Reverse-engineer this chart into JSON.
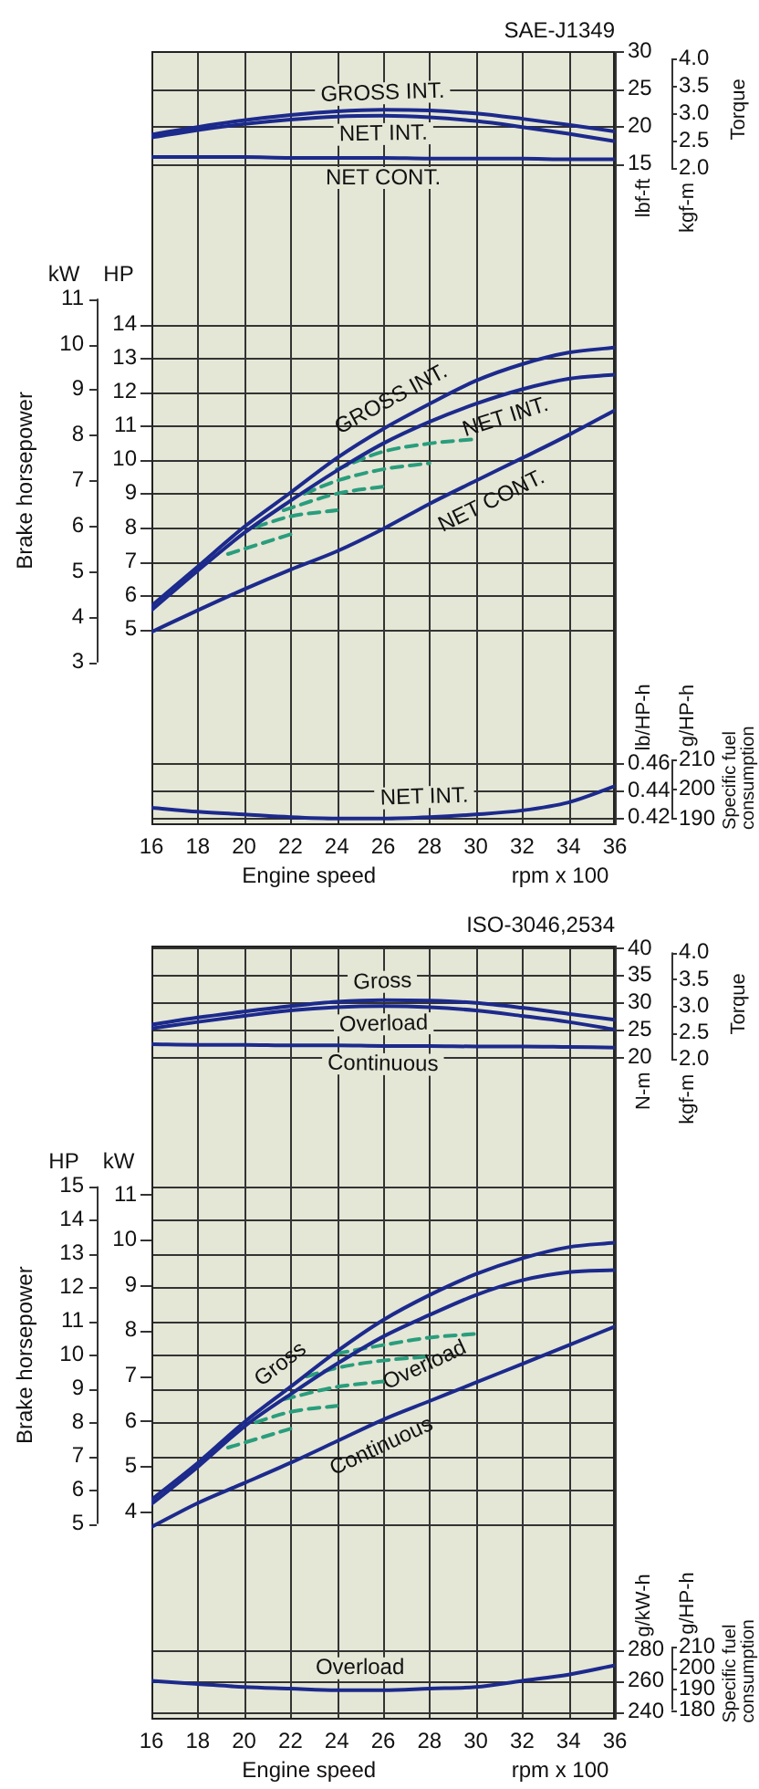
{
  "chart_data": [
    {
      "type": "line",
      "title": "SAE-J1349",
      "ylabel": "lbf-ft",
      "y2label": "kgf-m",
      "annotations": [
        "Torque"
      ],
      "x": [
        16,
        18,
        20,
        22,
        24,
        26,
        28,
        30,
        32,
        34,
        36
      ],
      "xlim": [
        16,
        36
      ],
      "xticks": [
        16,
        18,
        20,
        22,
        24,
        26,
        28,
        30,
        32,
        34,
        36
      ],
      "ylim": [
        4.5,
        30
      ],
      "yticks": [
        15,
        20,
        25,
        30
      ],
      "y2lim": [
        0.622,
        4.148
      ],
      "y2ticks": [
        {
          "value": 2,
          "label": "2.0"
        },
        {
          "value": 2.5,
          "label": "2.5"
        },
        {
          "value": 3,
          "label": "3.0"
        },
        {
          "value": 3.5,
          "label": "3.5"
        },
        {
          "value": 4,
          "label": "4.0"
        }
      ],
      "grid": true,
      "marker": "none",
      "tick_labels": "y",
      "series": [
        {
          "name": "GROSS INT.",
          "color": "#1c2a8c",
          "values": [
            18.9,
            19.9,
            20.8,
            21.5,
            22.0,
            22.2,
            22.1,
            21.7,
            21.0,
            20.2,
            19.3
          ]
        },
        {
          "name": "NET INT.",
          "color": "#1c2a8c",
          "values": [
            18.5,
            19.5,
            20.3,
            20.9,
            21.3,
            21.4,
            21.2,
            20.7,
            19.9,
            19.0,
            18.0
          ]
        },
        {
          "name": "NET CONT.",
          "color": "#1c2a8c",
          "values": [
            15.9,
            15.9,
            15.9,
            15.8,
            15.8,
            15.8,
            15.7,
            15.7,
            15.7,
            15.6,
            15.6
          ]
        }
      ]
    },
    {
      "type": "line",
      "ylabel": "HP",
      "y2label": "kW",
      "annotations": [
        "Brake horsepower"
      ],
      "x": [
        16,
        18,
        20,
        22,
        24,
        26,
        28,
        30,
        32,
        34,
        36
      ],
      "xlim": [
        16,
        36
      ],
      "xticks": [
        16,
        18,
        20,
        22,
        24,
        26,
        28,
        30,
        32,
        34,
        36
      ],
      "ylim": [
        3.8,
        16.4
      ],
      "yticks": [
        5,
        6,
        7,
        8,
        9,
        10,
        11,
        12,
        13,
        14
      ],
      "y2lim": [
        2.834,
        12.229
      ],
      "y2ticks": [
        3,
        4,
        5,
        6,
        7,
        8,
        9,
        10,
        11
      ],
      "grid": true,
      "marker": "none",
      "tick_labels": "y",
      "series": [
        {
          "name": "GROSS INT.",
          "color": "#1c2a8c",
          "values": [
            5.69,
            6.85,
            8.02,
            9.03,
            10.05,
            10.91,
            11.65,
            12.33,
            12.82,
            13.16,
            13.31
          ]
        },
        {
          "name": "NET INT.",
          "color": "#1c2a8c",
          "values": [
            5.56,
            6.73,
            7.84,
            8.79,
            9.68,
            10.48,
            11.12,
            11.65,
            12.08,
            12.39,
            12.51
          ]
        },
        {
          "name": "NET CONT.",
          "color": "#1c2a8c",
          "values": [
            4.92,
            5.56,
            6.18,
            6.76,
            7.3,
            7.96,
            8.7,
            9.38,
            10.05,
            10.73,
            11.46
          ]
        },
        {
          "color": "#2a9d7c",
          "line_style": "dashed",
          "x": [
            24,
            26,
            28,
            30
          ],
          "values": [
            9.72,
            10.24,
            10.48,
            10.61
          ]
        },
        {
          "color": "#2a9d7c",
          "line_style": "dashed",
          "x": [
            22.6,
            24,
            26,
            28
          ],
          "values": [
            9.0,
            9.38,
            9.72,
            9.9
          ]
        },
        {
          "color": "#2a9d7c",
          "line_style": "dashed",
          "x": [
            21.7,
            24,
            26
          ],
          "values": [
            8.51,
            9.0,
            9.21
          ]
        },
        {
          "color": "#2a9d7c",
          "line_style": "dashed",
          "x": [
            20.5,
            22,
            24
          ],
          "values": [
            8.02,
            8.33,
            8.51
          ]
        },
        {
          "color": "#2a9d7c",
          "line_style": "dashed",
          "x": [
            19.3,
            22
          ],
          "values": [
            7.22,
            7.8
          ]
        }
      ]
    },
    {
      "type": "line",
      "xlabel": "Engine speed",
      "ylabel": "lb/HP-h",
      "y2label": "g/HP-h",
      "annotations": [
        "Specific fuel consumption",
        "rpm x 100"
      ],
      "x": [
        16,
        18,
        20,
        22,
        24,
        26,
        28,
        30,
        32,
        34,
        36
      ],
      "xlim": [
        16,
        36
      ],
      "xticks": [
        16,
        18,
        20,
        22,
        24,
        26,
        28,
        30,
        32,
        34,
        36
      ],
      "ylim": [
        0.414,
        0.53
      ],
      "yticks": [
        0.42,
        0.44,
        0.46
      ],
      "y2lim": [
        187.8,
        240.4
      ],
      "y2ticks": [
        190,
        200,
        210
      ],
      "grid": true,
      "marker": "none",
      "series": [
        {
          "name": "NET INT.",
          "color": "#1c2a8c",
          "values": [
            0.427,
            0.424,
            0.422,
            0.42,
            0.419,
            0.419,
            0.42,
            0.422,
            0.425,
            0.431,
            0.443
          ]
        }
      ]
    },
    {
      "type": "line",
      "title": "ISO-3046,2534",
      "ylabel": "N-m",
      "y2label": "kgf-m",
      "annotations": [
        "Torque"
      ],
      "x": [
        16,
        18,
        20,
        22,
        24,
        26,
        28,
        30,
        32,
        34,
        36
      ],
      "xlim": [
        16,
        36
      ],
      "xticks": [
        16,
        18,
        20,
        22,
        24,
        26,
        28,
        30,
        32,
        34,
        36
      ],
      "ylim": [
        5,
        40.5
      ],
      "yticks": [
        20,
        25,
        30,
        35,
        40
      ],
      "y2lim": [
        0.51,
        4.13
      ],
      "y2ticks": [
        {
          "value": 2,
          "label": "2.0"
        },
        {
          "value": 2.5,
          "label": "2.5"
        },
        {
          "value": 3,
          "label": "3.0"
        },
        {
          "value": 3.5,
          "label": "3.5"
        },
        {
          "value": 4,
          "label": "4.0"
        }
      ],
      "grid": true,
      "marker": "none",
      "tick_labels": "y",
      "series": [
        {
          "name": "Gross",
          "color": "#1c2a8c",
          "values": [
            26.0,
            27.3,
            28.4,
            29.4,
            30.2,
            30.5,
            30.4,
            30.0,
            29.1,
            28.0,
            26.9
          ]
        },
        {
          "name": "Overload",
          "color": "#1c2a8c",
          "values": [
            25.3,
            26.5,
            27.6,
            28.6,
            29.2,
            29.4,
            29.2,
            28.6,
            27.6,
            26.5,
            25.1
          ]
        },
        {
          "name": "Continuous",
          "color": "#1c2a8c",
          "values": [
            22.4,
            22.3,
            22.3,
            22.2,
            22.2,
            22.1,
            22.1,
            22.0,
            22.0,
            21.9,
            21.8
          ]
        }
      ]
    },
    {
      "type": "line",
      "ylabel": "HP",
      "y2label": "kW",
      "annotations": [
        "Brake horsepower"
      ],
      "x": [
        16,
        18,
        20,
        22,
        24,
        26,
        28,
        30,
        32,
        34,
        36
      ],
      "xlim": [
        16,
        36
      ],
      "xticks": [
        16,
        18,
        20,
        22,
        24,
        26,
        28,
        30,
        32,
        34,
        36
      ],
      "ylim": [
        3.8,
        16.4
      ],
      "yticks": [
        5,
        6,
        7,
        8,
        9,
        10,
        11,
        12,
        13,
        14,
        15
      ],
      "y2lim": [
        2.834,
        12.229
      ],
      "y2ticks": [
        4,
        5,
        6,
        7,
        8,
        9,
        10,
        11
      ],
      "grid": true,
      "marker": "none",
      "tick_labels": "y",
      "series": [
        {
          "name": "Gross",
          "color": "#1c2a8c",
          "values": [
            5.72,
            6.81,
            8.01,
            9.06,
            10.11,
            11.04,
            11.78,
            12.4,
            12.87,
            13.2,
            13.33
          ]
        },
        {
          "name": "Overload",
          "color": "#1c2a8c",
          "values": [
            5.59,
            6.69,
            7.88,
            8.84,
            9.74,
            10.55,
            11.19,
            11.78,
            12.22,
            12.46,
            12.52
          ]
        },
        {
          "name": "Continuous",
          "color": "#1c2a8c",
          "values": [
            4.91,
            5.62,
            6.21,
            6.81,
            7.45,
            8.09,
            8.64,
            9.19,
            9.74,
            10.29,
            10.85
          ]
        },
        {
          "color": "#2a9d7c",
          "line_style": "dashed",
          "x": [
            24,
            26,
            28,
            30
          ],
          "values": [
            10.05,
            10.3,
            10.52,
            10.63
          ]
        },
        {
          "color": "#2a9d7c",
          "line_style": "dashed",
          "x": [
            22.7,
            24,
            26,
            28
          ],
          "values": [
            9.37,
            9.62,
            9.84,
            9.96
          ]
        },
        {
          "color": "#2a9d7c",
          "line_style": "dashed",
          "x": [
            21.7,
            24,
            26
          ],
          "values": [
            8.69,
            9.06,
            9.22
          ]
        },
        {
          "color": "#2a9d7c",
          "line_style": "dashed",
          "x": [
            20.5,
            22,
            24
          ],
          "values": [
            8.01,
            8.32,
            8.5
          ]
        },
        {
          "color": "#2a9d7c",
          "line_style": "dashed",
          "x": [
            19.3,
            22
          ],
          "values": [
            7.26,
            7.82
          ]
        }
      ]
    },
    {
      "type": "line",
      "xlabel": "Engine speed",
      "ylabel": "g/kW-h",
      "y2label": "g/HP-h",
      "annotations": [
        "Specific fuel consumption",
        "rpm x 100"
      ],
      "x": [
        16,
        18,
        20,
        22,
        24,
        26,
        28,
        30,
        32,
        34,
        36
      ],
      "xlim": [
        16,
        36
      ],
      "xticks": [
        16,
        18,
        20,
        22,
        24,
        26,
        28,
        30,
        32,
        34,
        36
      ],
      "ylim": [
        235,
        335
      ],
      "yticks": [
        240,
        260,
        280
      ],
      "y2lim": [
        175.24,
        249.81
      ],
      "y2ticks": [
        180,
        190,
        200,
        210
      ],
      "grid": true,
      "marker": "none",
      "series": [
        {
          "name": "Overload",
          "color": "#1c2a8c",
          "values": [
            260,
            258,
            256,
            255,
            254,
            254,
            255,
            256,
            260,
            264,
            270
          ]
        }
      ]
    }
  ]
}
